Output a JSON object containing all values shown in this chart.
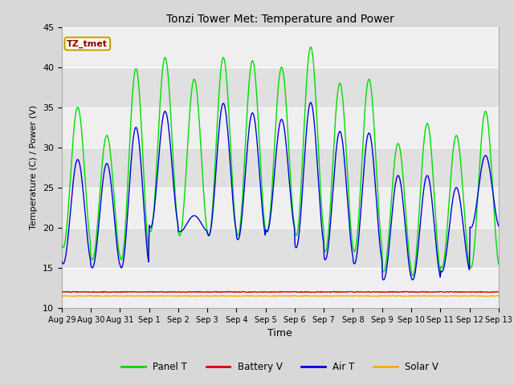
{
  "title": "Tonzi Tower Met: Temperature and Power",
  "xlabel": "Time",
  "ylabel": "Temperature (C) / Power (V)",
  "ylim": [
    10,
    45
  ],
  "yticks": [
    10,
    15,
    20,
    25,
    30,
    35,
    40,
    45
  ],
  "fig_bg": "#d8d8d8",
  "plot_bg": "#e8e8e8",
  "band_light": "#efefef",
  "band_dark": "#e0e0e0",
  "legend_label": "TZ_tmet",
  "legend_box_color": "#fffff0",
  "legend_text_color": "#8b0000",
  "legend_edge_color": "#c8a000",
  "series_colors": {
    "Panel T": "#00dd00",
    "Battery V": "#dd0000",
    "Air T": "#0000dd",
    "Solar V": "#ffaa00"
  },
  "x_tick_labels": [
    "Aug 29",
    "Aug 30",
    "Aug 31",
    "Sep 1",
    "Sep 2",
    "Sep 3",
    "Sep 4",
    "Sep 5",
    "Sep 6",
    "Sep 7",
    "Sep 8",
    "Sep 9",
    "Sep 10",
    "Sep 11",
    "Sep 12",
    "Sep 13"
  ],
  "total_days": 15,
  "panel_peaks": [
    35.0,
    31.5,
    39.8,
    41.2,
    38.5,
    41.2,
    40.8,
    40.0,
    42.5,
    38.0,
    38.5,
    30.5,
    33.0,
    31.5,
    34.5
  ],
  "panel_troughs": [
    17.5,
    16.0,
    16.0,
    19.5,
    19.0,
    19.0,
    19.0,
    19.5,
    19.0,
    17.0,
    17.0,
    14.5,
    14.0,
    15.0,
    15.0
  ],
  "air_peaks": [
    28.5,
    28.0,
    32.5,
    34.5,
    21.5,
    35.5,
    34.3,
    33.5,
    35.6,
    32.0,
    31.8,
    26.5,
    26.5,
    25.0,
    29.0
  ],
  "air_troughs": [
    15.5,
    15.0,
    15.0,
    20.0,
    19.5,
    19.0,
    18.5,
    19.5,
    17.5,
    16.0,
    15.5,
    13.5,
    13.5,
    14.5,
    20.0
  ],
  "battery_v": 12.0,
  "solar_v": 11.5
}
